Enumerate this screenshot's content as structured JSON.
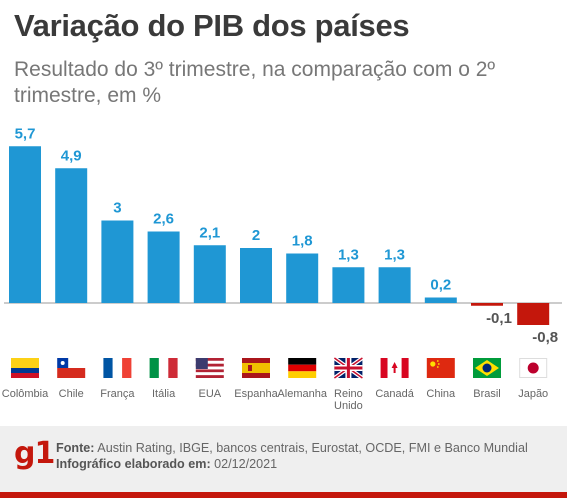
{
  "title": "Variação do PIB dos países",
  "subtitle": "Resultado do 3º trimestre, na comparação com o 2º trimestre, em %",
  "chart_data": {
    "type": "bar",
    "categories": [
      "Colômbia",
      "Chile",
      "França",
      "Itália",
      "EUA",
      "Espanha",
      "Alemanha",
      "Reino\nUnido",
      "Canadá",
      "China",
      "Brasil",
      "Japão"
    ],
    "values": [
      5.7,
      4.9,
      3.0,
      2.6,
      2.1,
      2.0,
      1.8,
      1.3,
      1.3,
      0.2,
      -0.1,
      -0.8
    ],
    "value_labels": [
      "5,7",
      "4,9",
      "3",
      "2,6",
      "2,1",
      "2",
      "1,8",
      "1,3",
      "1,3",
      "0,2",
      "-0,1",
      "-0,8"
    ],
    "flag_icons": [
      "colombia-flag-icon",
      "chile-flag-icon",
      "france-flag-icon",
      "italy-flag-icon",
      "usa-flag-icon",
      "spain-flag-icon",
      "germany-flag-icon",
      "uk-flag-icon",
      "canada-flag-icon",
      "china-flag-icon",
      "brazil-flag-icon",
      "japan-flag-icon"
    ],
    "colors": {
      "positive": "#1f97d4",
      "negative": "#c4170c",
      "value_label": "#1f97d4",
      "negative_label": "#555555"
    },
    "grid": false
  },
  "footer": {
    "logo": "g1",
    "source_label": "Fonte:",
    "source_text": "Austin Rating, IBGE, bancos centrais, Eurostat, OCDE, FMI e Banco Mundial",
    "credit_label": "Infográfico elaborado em:",
    "credit_date": "02/12/2021"
  }
}
